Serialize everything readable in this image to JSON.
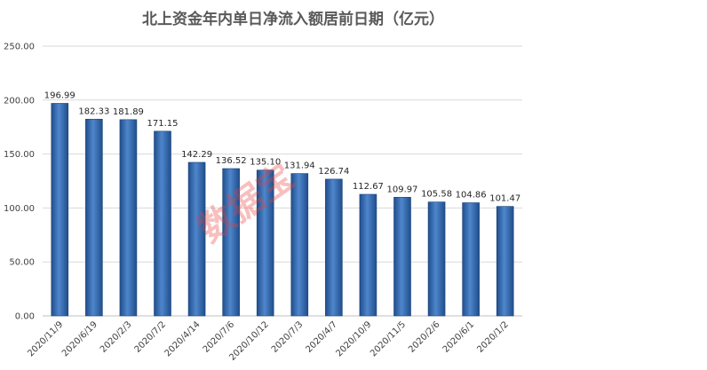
{
  "chart_data": {
    "type": "bar",
    "title": "北上资金年内单日净流入额居前日期（亿元）",
    "xlabel": "",
    "ylabel": "",
    "ylim": [
      0,
      250
    ],
    "yticks": [
      "0.00",
      "50.00",
      "100.00",
      "150.00",
      "200.00",
      "250.00"
    ],
    "grid": true,
    "legend": "none",
    "categories": [
      "2020/11/9",
      "2020/6/19",
      "2020/2/3",
      "2020/7/2",
      "2020/4/14",
      "2020/7/6",
      "2020/10/12",
      "2020/7/3",
      "2020/4/7",
      "2020/10/9",
      "2020/11/5",
      "2020/2/6",
      "2020/6/1",
      "2020/1/2"
    ],
    "values": [
      196.99,
      182.33,
      181.89,
      171.15,
      142.29,
      136.52,
      135.1,
      131.94,
      126.74,
      112.67,
      109.97,
      105.58,
      104.86,
      101.47
    ],
    "value_labels": [
      "196.99",
      "182.33",
      "181.89",
      "171.15",
      "142.29",
      "136.52",
      "135.10",
      "131.94",
      "126.74",
      "112.67",
      "109.97",
      "105.58",
      "104.86",
      "101.47"
    ],
    "bar_color": "#3e70b5",
    "watermark": "数据宝"
  }
}
